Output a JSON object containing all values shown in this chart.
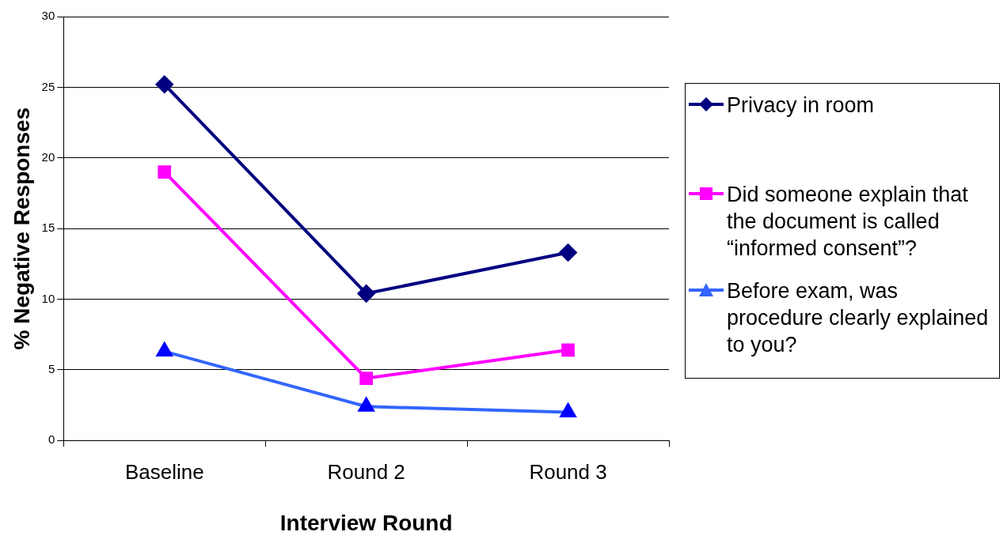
{
  "chart_data": {
    "type": "line",
    "xlabel": "Interview Round",
    "ylabel": "% Negative Responses",
    "categories": [
      "Baseline",
      "Round 2",
      "Round 3"
    ],
    "series": [
      {
        "name": "Privacy in room",
        "color": "#000080",
        "marker": "diamond",
        "values": [
          25.2,
          10.4,
          13.3
        ]
      },
      {
        "name": "Did someone explain that the document is called “informed consent”?",
        "color": "#ff00ff",
        "marker": "square",
        "values": [
          19.0,
          4.4,
          6.4
        ]
      },
      {
        "name": "Before exam, was procedure clearly explained to you?",
        "color": "#3366ff",
        "marker": "triangle",
        "values": [
          6.3,
          2.4,
          2.0
        ]
      }
    ],
    "ylim": [
      0,
      30
    ],
    "yticks": [
      0,
      5,
      10,
      15,
      20,
      25,
      30
    ],
    "grid": "y",
    "legend": "right",
    "line_style": "solid"
  }
}
